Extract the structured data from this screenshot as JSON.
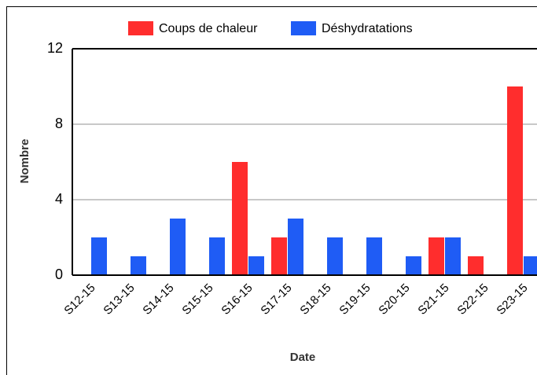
{
  "chart_data": {
    "type": "bar",
    "categories": [
      "S12-15",
      "S13-15",
      "S14-15",
      "S15-15",
      "S16-15",
      "S17-15",
      "S18-15",
      "S19-15",
      "S20-15",
      "S21-15",
      "S22-15",
      "S23-15"
    ],
    "series": [
      {
        "name": "Coups de chaleur",
        "color": "#ff2d2d",
        "values": [
          0,
          0,
          0,
          0,
          6,
          2,
          0,
          0,
          0,
          2,
          1,
          10
        ]
      },
      {
        "name": "Déshydratations",
        "color": "#1f5cf5",
        "values": [
          2,
          1,
          3,
          2,
          1,
          3,
          2,
          2,
          1,
          2,
          0,
          1
        ]
      }
    ],
    "x_label": "Date",
    "y_label": "Nombre",
    "ylim": [
      0,
      12
    ],
    "yticks": [
      0,
      4,
      8,
      12
    ],
    "grid": true,
    "legend": "top"
  }
}
